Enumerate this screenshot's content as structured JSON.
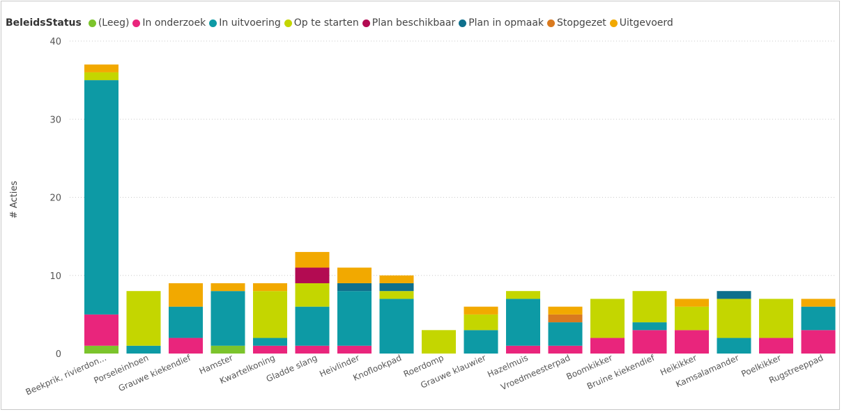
{
  "chart_data": {
    "type": "bar",
    "stacked": true,
    "legend_title": "BeleidsStatus",
    "legend_position": "top-left",
    "ylabel": "# Acties",
    "xlabel": "",
    "ylim": [
      0,
      40
    ],
    "yticks": [
      0,
      10,
      20,
      30,
      40
    ],
    "grid": true,
    "categories": [
      "Beekprik, rivierdon...",
      "Porseleinhoen",
      "Grauwe kiekendief",
      "Hamster",
      "Kwartelkoning",
      "Gladde slang",
      "Heivlinder",
      "Knoflookpad",
      "Roerdomp",
      "Grauwe klauwier",
      "Hazelmuis",
      "Vroedmeesterpad",
      "Boomkikker",
      "Bruine kiekendief",
      "Heikikker",
      "Kamsalamander",
      "Poelkikker",
      "Rugstreeppad"
    ],
    "series": [
      {
        "name": "(Leeg)",
        "color": "#7cc42c",
        "values": [
          1,
          0,
          0,
          1,
          0,
          0,
          0,
          0,
          0,
          0,
          0,
          0,
          0,
          0,
          0,
          0,
          0,
          0
        ]
      },
      {
        "name": "In onderzoek",
        "color": "#e9257c",
        "values": [
          4,
          0,
          2,
          0,
          1,
          1,
          1,
          0,
          0,
          0,
          1,
          1,
          2,
          3,
          3,
          0,
          2,
          3
        ]
      },
      {
        "name": "In uitvoering",
        "color": "#0d9aa5",
        "values": [
          30,
          1,
          4,
          7,
          1,
          5,
          7,
          7,
          0,
          3,
          6,
          3,
          0,
          1,
          0,
          2,
          0,
          3
        ]
      },
      {
        "name": "Op te starten",
        "color": "#c4d600",
        "values": [
          1,
          7,
          0,
          0,
          6,
          3,
          0,
          1,
          3,
          2,
          1,
          0,
          5,
          4,
          3,
          5,
          5,
          0
        ]
      },
      {
        "name": "Plan beschikbaar",
        "color": "#b30b52",
        "values": [
          0,
          0,
          0,
          0,
          0,
          2,
          0,
          0,
          0,
          0,
          0,
          0,
          0,
          0,
          0,
          0,
          0,
          0
        ]
      },
      {
        "name": "Plan in opmaak",
        "color": "#0e6f8c",
        "values": [
          0,
          0,
          0,
          0,
          0,
          0,
          1,
          1,
          0,
          0,
          0,
          0,
          0,
          0,
          0,
          1,
          0,
          0
        ]
      },
      {
        "name": "Stopgezet",
        "color": "#d97a1f",
        "values": [
          0,
          0,
          0,
          0,
          0,
          0,
          0,
          0,
          0,
          0,
          0,
          1,
          0,
          0,
          0,
          0,
          0,
          0
        ]
      },
      {
        "name": "Uitgevoerd",
        "color": "#f2a900",
        "values": [
          1,
          0,
          3,
          1,
          1,
          2,
          2,
          1,
          0,
          1,
          0,
          1,
          0,
          0,
          1,
          0,
          0,
          1
        ]
      }
    ]
  }
}
